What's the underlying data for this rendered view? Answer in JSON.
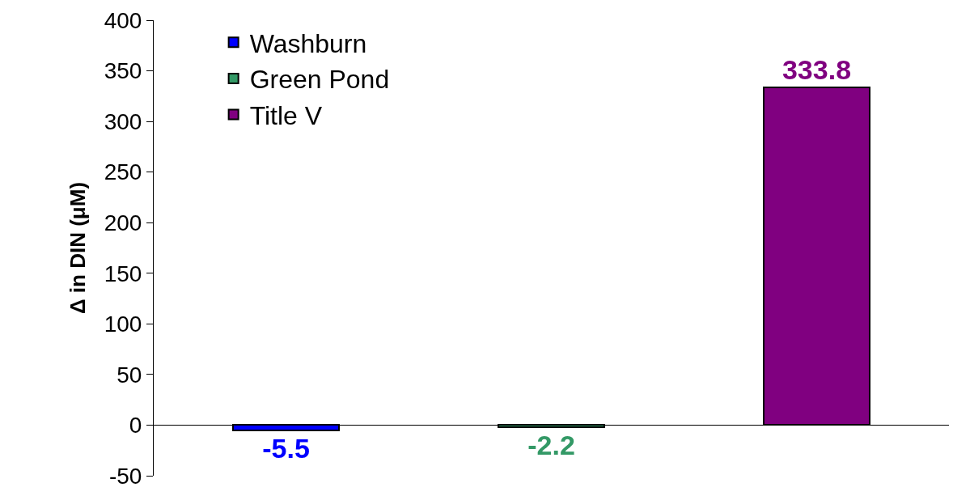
{
  "chart_data": {
    "type": "bar",
    "ylabel": "Δ in DIN (μM)",
    "categories": [
      null,
      null,
      null
    ],
    "series": [
      {
        "name": "Washburn",
        "color": "#0000ff",
        "values": [
          -5.5,
          null,
          null
        ]
      },
      {
        "name": "Green Pond",
        "color": "#339966",
        "values": [
          null,
          -2.2,
          null
        ]
      },
      {
        "name": "Title V",
        "color": "#800080",
        "values": [
          null,
          null,
          333.8
        ]
      }
    ],
    "ylim": [
      -50,
      400
    ],
    "yticks": [
      -50,
      0,
      50,
      100,
      150,
      200,
      250,
      300,
      350,
      400
    ],
    "data_labels": true,
    "legend": "top left"
  }
}
